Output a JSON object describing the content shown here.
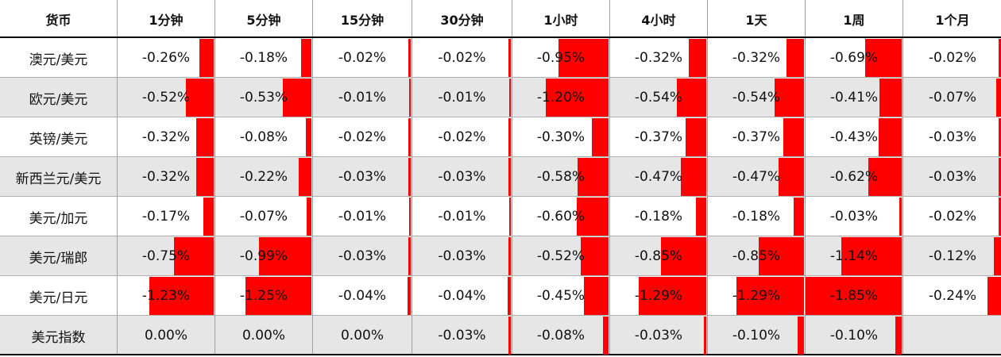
{
  "table": {
    "header": [
      "货币",
      "1分钟",
      "5分钟",
      "15分钟",
      "30分钟",
      "1小时",
      "4小时",
      "1天",
      "1周",
      "1个月"
    ],
    "bar_color": "#ff0000",
    "rows": [
      {
        "name": "澳元/美元",
        "values": [
          -0.26,
          -0.18,
          -0.02,
          -0.02,
          -0.95,
          -0.32,
          -0.32,
          -0.69,
          -0.02
        ],
        "value_labels": [
          "-0.26%",
          "-0.18%",
          "-0.02%",
          "-0.02%",
          "-0.95%",
          "-0.32%",
          "-0.32%",
          "-0.69%",
          "-0.02%"
        ]
      },
      {
        "name": "欧元/美元",
        "values": [
          -0.52,
          -0.53,
          -0.01,
          -0.01,
          -1.2,
          -0.54,
          -0.54,
          -0.41,
          -0.07
        ],
        "value_labels": [
          "-0.52%",
          "-0.53%",
          "-0.01%",
          "-0.01%",
          "-1.20%",
          "-0.54%",
          "-0.54%",
          "-0.41%",
          "-0.07%"
        ]
      },
      {
        "name": "英镑/美元",
        "values": [
          -0.32,
          -0.08,
          -0.02,
          -0.02,
          -0.3,
          -0.37,
          -0.37,
          -0.43,
          -0.03
        ],
        "value_labels": [
          "-0.32%",
          "-0.08%",
          "-0.02%",
          "-0.02%",
          "-0.30%",
          "-0.37%",
          "-0.37%",
          "-0.43%",
          "-0.03%"
        ]
      },
      {
        "name": "新西兰元/美元",
        "values": [
          -0.32,
          -0.22,
          -0.03,
          -0.03,
          -0.58,
          -0.47,
          -0.47,
          -0.62,
          -0.03
        ],
        "value_labels": [
          "-0.32%",
          "-0.22%",
          "-0.03%",
          "-0.03%",
          "-0.58%",
          "-0.47%",
          "-0.47%",
          "-0.62%",
          "-0.03%"
        ]
      },
      {
        "name": "美元/加元",
        "values": [
          -0.17,
          -0.07,
          -0.01,
          -0.01,
          -0.6,
          -0.18,
          -0.18,
          -0.03,
          -0.02
        ],
        "value_labels": [
          "-0.17%",
          "-0.07%",
          "-0.01%",
          "-0.01%",
          "-0.60%",
          "-0.18%",
          "-0.18%",
          "-0.03%",
          "-0.02%"
        ]
      },
      {
        "name": "美元/瑞郎",
        "values": [
          -0.75,
          -0.99,
          -0.03,
          -0.03,
          -0.52,
          -0.85,
          -0.85,
          -1.14,
          -0.12
        ],
        "value_labels": [
          "-0.75%",
          "-0.99%",
          "-0.03%",
          "-0.03%",
          "-0.52%",
          "-0.85%",
          "-0.85%",
          "-1.14%",
          "-0.12%"
        ]
      },
      {
        "name": "美元/日元",
        "values": [
          -1.23,
          -1.25,
          -0.04,
          -0.04,
          -0.45,
          -1.29,
          -1.29,
          -1.85,
          -0.24
        ],
        "value_labels": [
          "-1.23%",
          "-1.25%",
          "-0.04%",
          "-0.04%",
          "-0.45%",
          "-1.29%",
          "-1.29%",
          "-1.85%",
          "-0.24%"
        ]
      },
      {
        "name": "美元指数",
        "values": [
          0.0,
          0.0,
          0.0,
          -0.03,
          -0.08,
          -0.03,
          -0.1,
          -0.1,
          null
        ],
        "value_labels": [
          "0.00%",
          "0.00%",
          "0.00%",
          "-0.03%",
          "-0.08%",
          "-0.03%",
          "-0.10%",
          "-0.10%",
          null
        ]
      }
    ]
  }
}
